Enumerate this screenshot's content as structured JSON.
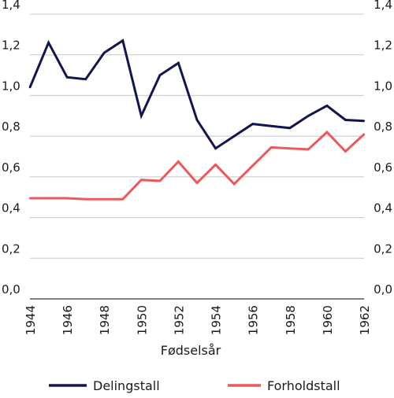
{
  "colors": {
    "delingstall": "#12164f",
    "forholdstall": "#ea5a5b",
    "grid": "#c8c8c8",
    "axis": "#333333"
  },
  "chart_data": {
    "type": "line",
    "xlabel": "Fødselsår",
    "ylabel": "",
    "x": [
      1944,
      1945,
      1946,
      1947,
      1948,
      1949,
      1950,
      1951,
      1952,
      1953,
      1954,
      1955,
      1956,
      1957,
      1958,
      1959,
      1960,
      1961,
      1962
    ],
    "series": [
      {
        "name": "Delingstall",
        "color": "#12164f",
        "values": [
          1.04,
          1.26,
          1.09,
          1.08,
          1.21,
          1.27,
          0.9,
          1.1,
          1.16,
          0.88,
          0.74,
          0.8,
          0.86,
          0.85,
          0.84,
          0.9,
          0.95,
          0.88,
          0.875
        ]
      },
      {
        "name": "Forholdstall",
        "color": "#ea5a5b",
        "values": [
          0.495,
          0.495,
          0.495,
          0.49,
          0.49,
          0.49,
          0.585,
          0.58,
          0.675,
          0.57,
          0.66,
          0.565,
          0.655,
          0.745,
          0.74,
          0.735,
          0.82,
          0.725,
          0.81
        ]
      }
    ],
    "xticks": [
      1944,
      1946,
      1948,
      1950,
      1952,
      1954,
      1956,
      1958,
      1960,
      1962
    ],
    "xtick_labels": [
      "1944",
      "1946",
      "1948",
      "1950",
      "1952",
      "1954",
      "1956",
      "1958",
      "1960",
      "1962"
    ],
    "yticks": [
      0.0,
      0.2,
      0.4,
      0.6,
      0.8,
      1.0,
      1.2,
      1.4
    ],
    "ytick_labels": [
      "0,0",
      "0,2",
      "0,4",
      "0,6",
      "0,8",
      "1,0",
      "1,2",
      "1,4"
    ],
    "xlim": [
      1944,
      1962
    ],
    "ylim": [
      0,
      1.4
    ],
    "grid": true,
    "dual_y_axis_labels": true,
    "legend_position": "bottom"
  }
}
